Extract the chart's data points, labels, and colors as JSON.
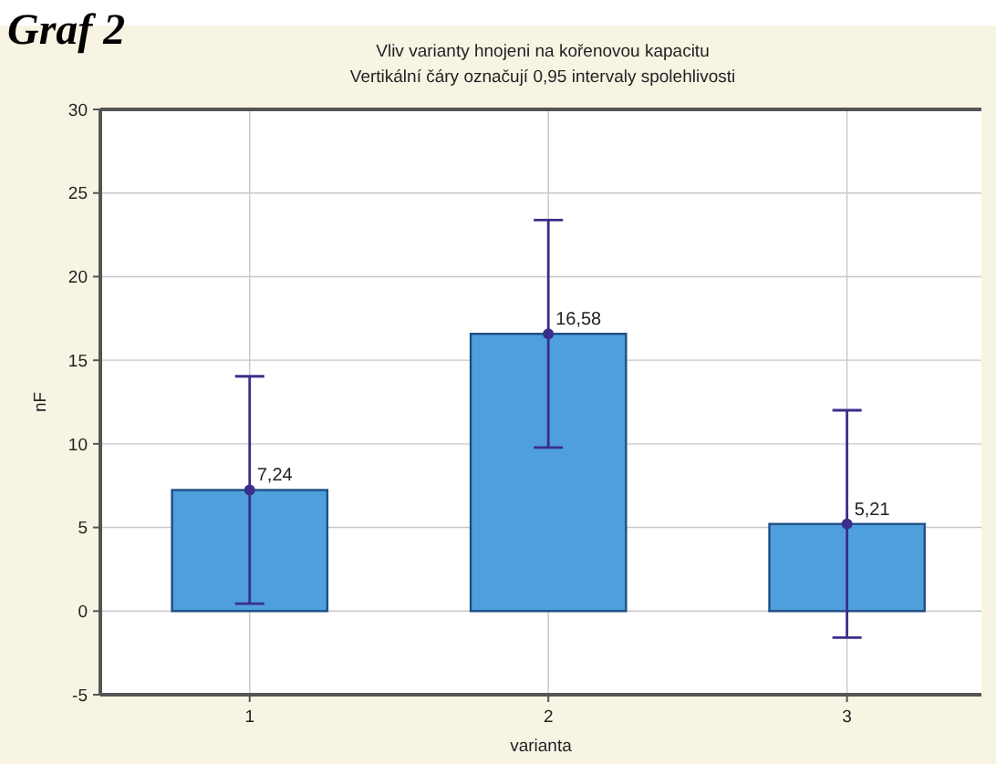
{
  "chart_data": {
    "type": "bar",
    "title": "Vliv varianty hnojeni na kořenovou kapacitu",
    "subtitle": "Vertikální čáry označují 0,95 intervaly spolehlivosti",
    "xlabel": "varianta",
    "ylabel": "nF",
    "annotations": [
      "Graf 2"
    ],
    "categories": [
      "1",
      "2",
      "3"
    ],
    "series": [
      {
        "color": "#4f9fdc",
        "values": [
          7.24,
          16.58,
          5.21
        ],
        "value_labels": [
          "7,24",
          "16,58",
          "5,21"
        ],
        "errors": [
          6.8,
          6.8,
          6.8
        ]
      },
      {
        "type": "scatter",
        "color": "#3b2e8a",
        "x": [
          "1",
          "2",
          "3"
        ],
        "values": [
          7.24,
          16.58,
          5.21
        ]
      }
    ],
    "marker": "circle",
    "ylim": [
      -5,
      30
    ],
    "yticks": [
      -5,
      0,
      5,
      10,
      15,
      20,
      25,
      30
    ],
    "grid": true
  }
}
